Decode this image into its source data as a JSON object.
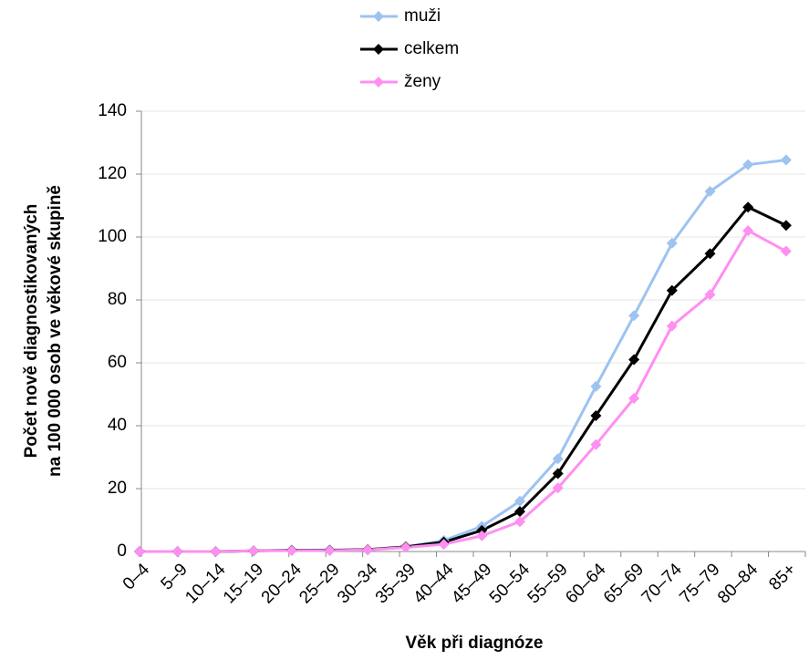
{
  "chart_data": {
    "type": "line",
    "ylabel": [
      "Počet nově diagnostikovaných",
      "na 100 000 osob ve věkové skupině"
    ],
    "xlabel": "Věk při diagnóze",
    "categories": [
      "0–4",
      "5–9",
      "10–14",
      "15–19",
      "20–24",
      "25–29",
      "30–34",
      "35–39",
      "40–44",
      "45–49",
      "50–54",
      "55–59",
      "60–64",
      "65–69",
      "70–74",
      "75–79",
      "80–84",
      "85+"
    ],
    "series": [
      {
        "name": "muži",
        "color": "#9dc3f0",
        "values": [
          0,
          0,
          0,
          0.2,
          0.4,
          0.5,
          0.5,
          1.5,
          3.5,
          8,
          16,
          29.5,
          52.5,
          75,
          98,
          114.5,
          123,
          124.5
        ]
      },
      {
        "name": "celkem",
        "color": "#000000",
        "values": [
          0,
          0,
          0,
          0.2,
          0.4,
          0.4,
          0.6,
          1.5,
          3,
          6.7,
          12.7,
          24.8,
          43.2,
          61,
          83,
          94.7,
          109.5,
          103.7
        ]
      },
      {
        "name": "ženy",
        "color": "#ff8ff0",
        "values": [
          0,
          0,
          0,
          0.2,
          0.3,
          0.3,
          0.5,
          1.3,
          2.3,
          5,
          9.5,
          20.2,
          34,
          48.7,
          71.7,
          81.7,
          102,
          95.5
        ]
      }
    ],
    "ylim": [
      0,
      140
    ],
    "yticks": [
      0,
      20,
      40,
      60,
      80,
      100,
      120,
      140
    ],
    "grid": true,
    "legend": "top"
  }
}
